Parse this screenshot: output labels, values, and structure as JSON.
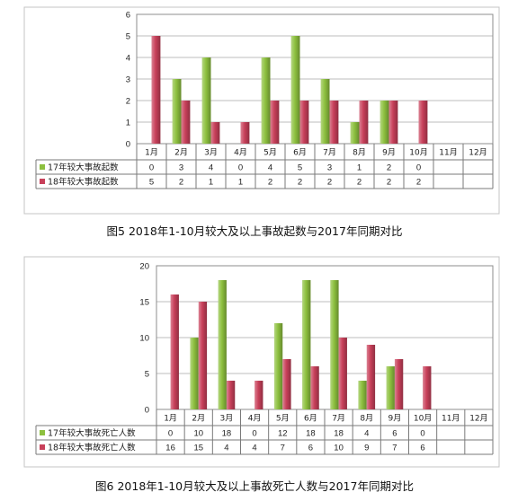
{
  "chart_data": [
    {
      "type": "bar",
      "title": "图5  2018年1-10月较大及以上事故起数与2017年同期对比",
      "categories": [
        "1月",
        "2月",
        "3月",
        "4月",
        "5月",
        "6月",
        "7月",
        "8月",
        "9月",
        "10月",
        "11月",
        "12月"
      ],
      "series": [
        {
          "name": "17年较大事故起数",
          "color": "#8dc03f",
          "values": [
            0,
            3,
            4,
            0,
            4,
            5,
            3,
            1,
            2,
            0,
            null,
            null
          ]
        },
        {
          "name": "18年较大事故起数",
          "color": "#c8405a",
          "values": [
            5,
            2,
            1,
            1,
            2,
            2,
            2,
            2,
            2,
            2,
            null,
            null
          ]
        }
      ],
      "ylim": [
        0,
        6
      ],
      "yticks": [
        0,
        1,
        2,
        3,
        4,
        5,
        6
      ],
      "grid": true,
      "legend": "data-table-left",
      "data_table": true
    },
    {
      "type": "bar",
      "title": "图6  2018年1-10月较大及以上事故死亡人数与2017年同期对比",
      "categories": [
        "1月",
        "2月",
        "3月",
        "4月",
        "5月",
        "6月",
        "7月",
        "8月",
        "9月",
        "10月",
        "11月",
        "12月"
      ],
      "series": [
        {
          "name": "17年较大事故死亡人数",
          "color": "#8dc03f",
          "values": [
            0,
            10,
            18,
            0,
            12,
            18,
            18,
            4,
            6,
            0,
            null,
            null
          ]
        },
        {
          "name": "18年较大事故死亡人数",
          "color": "#c8405a",
          "values": [
            16,
            15,
            4,
            4,
            7,
            6,
            10,
            9,
            7,
            6,
            null,
            null
          ]
        }
      ],
      "ylim": [
        0,
        20
      ],
      "yticks": [
        0,
        5,
        10,
        15,
        20
      ],
      "grid": true,
      "legend": "data-table-left",
      "data_table": true
    }
  ]
}
